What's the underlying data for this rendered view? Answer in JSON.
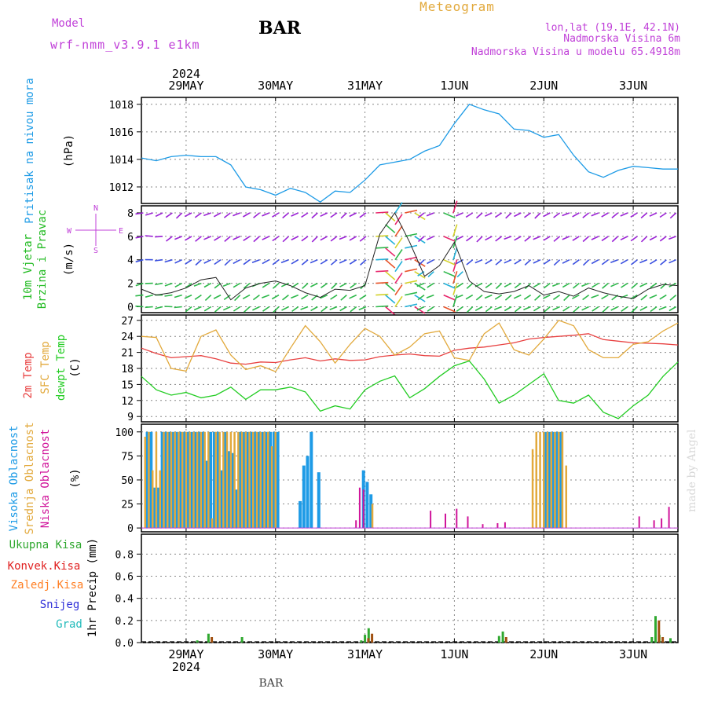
{
  "header": {
    "model_label": "Model",
    "model_name": "wrf-nmm_v3.9.1 e1km",
    "station": "BAR",
    "meteogram_title": "Meteogram",
    "coords": "lon,lat (19.1E, 42.1N)",
    "elevation": "Nadmorska Visina 6m",
    "model_elevation": "Nadmorska Visina u modelu 65.4918m",
    "footer_station": "BAR",
    "watermark": "made by Angel"
  },
  "time_axis": {
    "year": "2024",
    "labels": [
      "29MAY",
      "30MAY",
      "31MAY",
      "1JUN",
      "2JUN",
      "3JUN"
    ],
    "range_hours": [
      -12,
      132
    ]
  },
  "colors": {
    "pressure": "#1e9be6",
    "temp2m": "#e84040",
    "sfc_temp": "#e2a93c",
    "dewpt": "#22cc22",
    "high_cloud": "#1e9be6",
    "mid_cloud": "#e2a93c",
    "low_cloud": "#d0149a",
    "precip_total": "#2fa82f",
    "precip_conv": "#e02020",
    "precip_frz": "#ff7f24",
    "precip_snow": "#3030d8",
    "precip_graupel": "#22bbbb",
    "wind_label": "#c040d8"
  },
  "chart_data": [
    {
      "type": "line",
      "panel": "pressure",
      "ylabel": "Pritisak na nivou mora",
      "unit": "(hPa)",
      "yticks": [
        1012,
        1014,
        1016,
        1018
      ],
      "ylim": [
        1010.8,
        1018.5
      ],
      "series": [
        {
          "x": [
            -12,
            -8,
            -4,
            0,
            4,
            8,
            12,
            16,
            20,
            24,
            28,
            32,
            36,
            40,
            44,
            48,
            52,
            56,
            60,
            64,
            68,
            72,
            76,
            80,
            84,
            88,
            92,
            96,
            100,
            104,
            108,
            112,
            116,
            120,
            124,
            128,
            132
          ],
          "values": [
            1014.1,
            1013.9,
            1014.2,
            1014.3,
            1014.2,
            1014.2,
            1013.6,
            1012.0,
            1011.8,
            1011.4,
            1011.9,
            1011.6,
            1010.9,
            1011.7,
            1011.6,
            1012.5,
            1013.6,
            1013.8,
            1014.0,
            1014.6,
            1015.0,
            1016.6,
            1018.0,
            1017.6,
            1017.3,
            1016.2,
            1016.1,
            1015.6,
            1015.8,
            1014.3,
            1013.1,
            1012.7,
            1013.2,
            1013.5,
            1013.4,
            1013.3,
            1013.3
          ]
        }
      ]
    },
    {
      "type": "line",
      "panel": "wind",
      "ylabel": "10m Vjetar Brzina i Pravac",
      "unit": "(m/s)",
      "compass_labels": [
        "N",
        "S",
        "W",
        "E"
      ],
      "yticks": [
        0,
        2,
        4,
        6,
        8
      ],
      "ylim": [
        -0.5,
        8.6
      ],
      "series": [
        {
          "name": "speed",
          "x": [
            -12,
            -8,
            -4,
            0,
            4,
            8,
            12,
            16,
            20,
            24,
            28,
            32,
            36,
            40,
            44,
            48,
            52,
            56,
            60,
            64,
            68,
            72,
            76,
            80,
            84,
            88,
            92,
            96,
            100,
            104,
            108,
            112,
            116,
            120,
            124,
            128,
            132
          ],
          "values": [
            1.5,
            1.0,
            1.2,
            1.6,
            2.3,
            2.5,
            0.6,
            1.6,
            2.0,
            2.2,
            1.8,
            1.2,
            0.8,
            1.5,
            1.4,
            1.8,
            6.2,
            8.0,
            5.5,
            2.6,
            3.5,
            5.5,
            2.2,
            1.3,
            1.1,
            1.3,
            1.8,
            1.0,
            1.3,
            0.9,
            1.6,
            1.2,
            0.9,
            0.7,
            1.5,
            1.9,
            1.8
          ]
        }
      ]
    },
    {
      "type": "line",
      "panel": "temperature",
      "ylabel": [
        "2m Temp",
        "SFC Temp",
        "dewpt Temp"
      ],
      "unit": "(C)",
      "yticks": [
        9,
        12,
        15,
        18,
        21,
        24,
        27
      ],
      "ylim": [
        8.0,
        28.0
      ],
      "x": [
        -12,
        -8,
        -4,
        0,
        4,
        8,
        12,
        16,
        20,
        24,
        28,
        32,
        36,
        40,
        44,
        48,
        52,
        56,
        60,
        64,
        68,
        72,
        76,
        80,
        84,
        88,
        92,
        96,
        100,
        104,
        108,
        112,
        116,
        120,
        124,
        128,
        132
      ],
      "series": [
        {
          "name": "2m Temp",
          "values": [
            21.8,
            20.8,
            20.0,
            20.2,
            20.4,
            19.8,
            19.0,
            18.8,
            19.2,
            19.1,
            19.6,
            20.0,
            19.4,
            19.8,
            19.5,
            19.6,
            20.2,
            20.5,
            20.7,
            20.4,
            20.3,
            21.4,
            21.8,
            22.0,
            22.4,
            22.8,
            23.5,
            23.8,
            24.0,
            24.2,
            24.5,
            23.4,
            23.1,
            22.8,
            22.7,
            22.6,
            22.4
          ]
        },
        {
          "name": "SFC Temp",
          "values": [
            24.0,
            23.8,
            18.0,
            17.5,
            24.0,
            25.2,
            20.5,
            17.8,
            18.5,
            17.4,
            21.8,
            26.0,
            23.0,
            19.0,
            22.5,
            25.5,
            24.0,
            20.5,
            22.0,
            24.5,
            25.0,
            20.0,
            19.5,
            24.5,
            26.5,
            21.5,
            20.5,
            23.5,
            27.0,
            26.0,
            21.5,
            20.0,
            20.0,
            22.5,
            23.0,
            25.0,
            26.5
          ]
        },
        {
          "name": "dewpt Temp",
          "values": [
            16.5,
            14.0,
            13.0,
            13.5,
            12.5,
            13.0,
            14.5,
            12.2,
            14.0,
            14.0,
            14.5,
            13.6,
            10.0,
            11.0,
            10.4,
            14.0,
            15.6,
            16.6,
            12.5,
            14.2,
            16.5,
            18.5,
            19.4,
            16.0,
            11.5,
            13.0,
            15.0,
            17.0,
            12.0,
            11.5,
            13.0,
            9.8,
            8.6,
            11.0,
            13.0,
            16.5,
            19.2
          ]
        }
      ]
    },
    {
      "type": "bar",
      "panel": "cloud",
      "ylabel": [
        "Visoka Oblacnost",
        "Srednja Oblacnost",
        "Niska Oblacnost"
      ],
      "unit": "(%)",
      "yticks": [
        0,
        25,
        50,
        75,
        100
      ],
      "ylim": [
        -4,
        108
      ],
      "series": [
        {
          "name": "Visoka Oblacnost",
          "x": [
            -11,
            -10,
            -9,
            -8,
            -7,
            -6,
            -5,
            -4,
            -3,
            -2,
            -1,
            0,
            1,
            2,
            3,
            4,
            5,
            6,
            7,
            8,
            9,
            10,
            11,
            12,
            13,
            14,
            15,
            16,
            17,
            18,
            19,
            20,
            21,
            22,
            23,
            24,
            30,
            31,
            32,
            33,
            35,
            47,
            48,
            49,
            96,
            97,
            98,
            99,
            100
          ],
          "values": [
            100,
            100,
            42,
            42,
            100,
            100,
            100,
            100,
            100,
            100,
            100,
            100,
            100,
            100,
            100,
            100,
            70,
            100,
            100,
            100,
            60,
            100,
            80,
            78,
            40,
            100,
            100,
            100,
            100,
            100,
            100,
            100,
            100,
            100,
            100,
            100,
            28,
            65,
            75,
            100,
            58,
            60,
            48,
            35,
            100,
            100,
            100,
            100,
            100
          ]
        },
        {
          "name": "Srednja Oblacnost",
          "x": [
            -11,
            -10,
            -9,
            -8,
            -7,
            -6,
            -5,
            -4,
            -3,
            -2,
            -1,
            0,
            1,
            2,
            3,
            4,
            5,
            6,
            7,
            8,
            9,
            10,
            11,
            12,
            13,
            14,
            15,
            16,
            17,
            18,
            19,
            20,
            21,
            22,
            23,
            24,
            50,
            93,
            94,
            95,
            96,
            97,
            98,
            99,
            100,
            101,
            102
          ],
          "values": [
            95,
            100,
            60,
            100,
            60,
            100,
            100,
            100,
            100,
            100,
            100,
            100,
            100,
            100,
            100,
            100,
            100,
            100,
            10,
            100,
            100,
            100,
            100,
            100,
            100,
            100,
            100,
            100,
            100,
            100,
            100,
            100,
            100,
            100,
            85,
            100,
            25,
            82,
            100,
            100,
            100,
            100,
            100,
            100,
            100,
            100,
            65
          ]
        },
        {
          "name": "Niska Oblacnost",
          "x": [
            46,
            47,
            48,
            66,
            70,
            73,
            76,
            80,
            84,
            86,
            122,
            126,
            128,
            130
          ],
          "values": [
            8,
            42,
            40,
            18,
            15,
            20,
            12,
            4,
            5,
            6,
            12,
            8,
            10,
            22
          ]
        }
      ]
    },
    {
      "type": "bar",
      "panel": "precip",
      "ylabel": "1hr Precip (mm)",
      "legend": [
        "Ukupna Kisa",
        "Konvek.Kisa",
        "Zaledj.Kisa",
        "Snijeg",
        "Grad"
      ],
      "yticks": [
        0,
        0.2,
        0.4,
        0.6,
        0.8
      ],
      "ylim": [
        0,
        0.98
      ],
      "series": [
        {
          "name": "Ukupna Kisa",
          "x": [
            3,
            6,
            15,
            47,
            48,
            49,
            84,
            85,
            125,
            126,
            127,
            130
          ],
          "values": [
            0.02,
            0.08,
            0.05,
            0.02,
            0.07,
            0.13,
            0.06,
            0.1,
            0.05,
            0.24,
            0.07,
            0.04
          ]
        },
        {
          "name": "Konvek.Kisa",
          "x": [
            6,
            48,
            49,
            85,
            126,
            127
          ],
          "values": [
            0.05,
            0.04,
            0.08,
            0.05,
            0.2,
            0.05
          ]
        }
      ]
    }
  ]
}
